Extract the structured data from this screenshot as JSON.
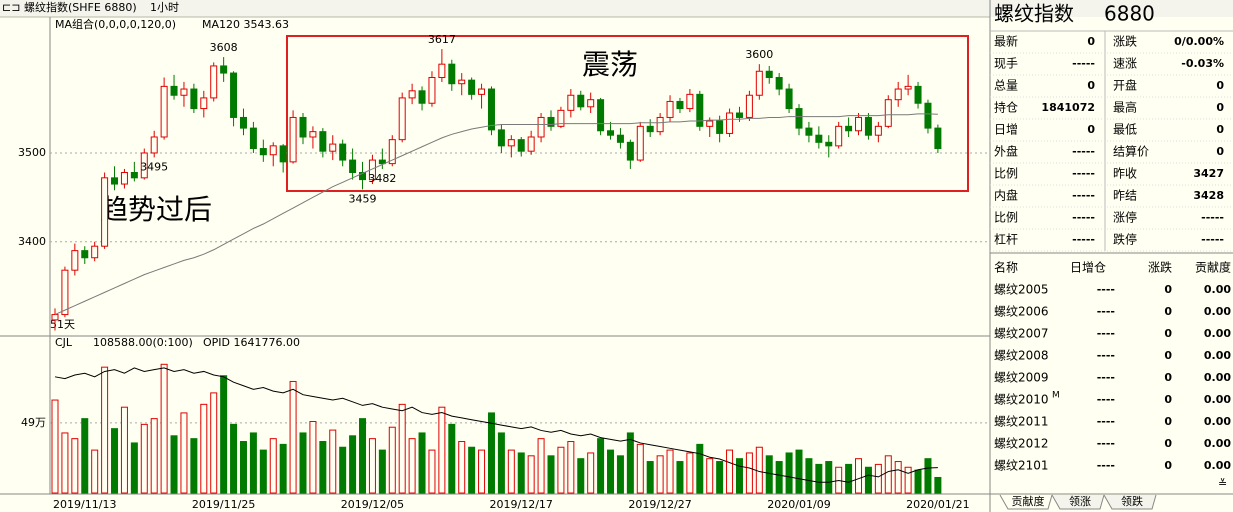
{
  "toolbar": {
    "symbol": "螺纹指数(SHFE 6880)",
    "period": "1小时"
  },
  "chart_data": [
    {
      "type": "candlestick",
      "title": "MA组合(0,0,0,0,120,0)",
      "ma_label": "MA120 3543.63",
      "categories": [
        null,
        null,
        null,
        "2019/11/13",
        null,
        null,
        null,
        null,
        null,
        null,
        null,
        null,
        null,
        null,
        null,
        null,
        null,
        "2019/11/25",
        null,
        null,
        null,
        null,
        null,
        null,
        null,
        null,
        null,
        null,
        null,
        null,
        null,
        null,
        "2019/12/05",
        null,
        null,
        null,
        null,
        null,
        null,
        null,
        null,
        null,
        null,
        null,
        null,
        null,
        null,
        "2019/12/17",
        null,
        null,
        null,
        null,
        null,
        null,
        null,
        null,
        null,
        null,
        null,
        null,
        null,
        "2019/12/27",
        null,
        null,
        null,
        null,
        null,
        null,
        null,
        null,
        null,
        null,
        null,
        null,
        null,
        "2020/01/09",
        null,
        null,
        null,
        null,
        null,
        null,
        null,
        null,
        null,
        null,
        null,
        null,
        null,
        "2020/01/21"
      ],
      "open": [
        3312,
        3318,
        3368,
        3390,
        3382,
        3395,
        3472,
        3465,
        3478,
        3472,
        3500,
        3518,
        3575,
        3565,
        3572,
        3550,
        3562,
        3598,
        3590,
        3540,
        3528,
        3505,
        3498,
        3508,
        3490,
        3540,
        3518,
        3524,
        3502,
        3510,
        3492,
        3478,
        3470,
        3492,
        3488,
        3515,
        3562,
        3570,
        3556,
        3585,
        3600,
        3578,
        3582,
        3566,
        3572,
        3526,
        3508,
        3515,
        3502,
        3518,
        3540,
        3530,
        3548,
        3565,
        3552,
        3560,
        3525,
        3520,
        3512,
        3492,
        3530,
        3524,
        3540,
        3558,
        3550,
        3566,
        3530,
        3536,
        3522,
        3545,
        3540,
        3565,
        3592,
        3585,
        3572,
        3550,
        3528,
        3520,
        3512,
        3508,
        3530,
        3525,
        3540,
        3520,
        3530,
        3560,
        3572,
        3575,
        3556,
        3528
      ],
      "high": [
        3325,
        3372,
        3398,
        3395,
        3400,
        3478,
        3485,
        3482,
        3490,
        3505,
        3525,
        3585,
        3588,
        3580,
        3578,
        3570,
        3602,
        3608,
        3592,
        3550,
        3535,
        3515,
        3512,
        3510,
        3548,
        3545,
        3530,
        3528,
        3520,
        3515,
        3505,
        3490,
        3498,
        3505,
        3520,
        3568,
        3578,
        3575,
        3592,
        3617,
        3605,
        3590,
        3585,
        3578,
        3575,
        3532,
        3520,
        3518,
        3525,
        3545,
        3548,
        3552,
        3572,
        3570,
        3568,
        3562,
        3535,
        3528,
        3515,
        3535,
        3538,
        3545,
        3565,
        3562,
        3572,
        3570,
        3540,
        3542,
        3550,
        3552,
        3570,
        3600,
        3598,
        3590,
        3578,
        3555,
        3535,
        3530,
        3520,
        3535,
        3540,
        3545,
        3545,
        3535,
        3565,
        3580,
        3588,
        3580,
        3560,
        3532
      ],
      "low": [
        3300,
        3315,
        3362,
        3375,
        3378,
        3392,
        3458,
        3460,
        3468,
        3470,
        3495,
        3515,
        3560,
        3552,
        3545,
        3540,
        3558,
        3580,
        3530,
        3520,
        3500,
        3490,
        3485,
        3478,
        3488,
        3510,
        3505,
        3495,
        3492,
        3485,
        3470,
        3459,
        3465,
        3482,
        3485,
        3512,
        3555,
        3548,
        3552,
        3580,
        3570,
        3565,
        3560,
        3550,
        3520,
        3500,
        3495,
        3496,
        3498,
        3512,
        3525,
        3528,
        3540,
        3548,
        3545,
        3520,
        3515,
        3505,
        3482,
        3490,
        3518,
        3520,
        3535,
        3545,
        3546,
        3525,
        3518,
        3512,
        3518,
        3535,
        3536,
        3560,
        3578,
        3565,
        3545,
        3520,
        3512,
        3505,
        3495,
        3505,
        3518,
        3520,
        3515,
        3512,
        3528,
        3552,
        3565,
        3550,
        3522,
        3500
      ],
      "close": [
        3318,
        3368,
        3390,
        3382,
        3395,
        3472,
        3465,
        3478,
        3472,
        3500,
        3518,
        3575,
        3565,
        3572,
        3550,
        3562,
        3598,
        3590,
        3540,
        3528,
        3505,
        3498,
        3508,
        3490,
        3540,
        3518,
        3524,
        3502,
        3510,
        3492,
        3478,
        3470,
        3492,
        3488,
        3515,
        3562,
        3570,
        3556,
        3585,
        3600,
        3578,
        3582,
        3566,
        3572,
        3526,
        3508,
        3515,
        3502,
        3518,
        3540,
        3530,
        3548,
        3565,
        3552,
        3560,
        3525,
        3520,
        3512,
        3492,
        3530,
        3524,
        3540,
        3558,
        3550,
        3566,
        3530,
        3536,
        3522,
        3545,
        3540,
        3565,
        3592,
        3585,
        3572,
        3550,
        3528,
        3520,
        3512,
        3508,
        3530,
        3525,
        3540,
        3520,
        3530,
        3560,
        3572,
        3575,
        3556,
        3528,
        3505
      ],
      "ma": {
        "color": "#7a7a7a",
        "values": [
          3318,
          3323,
          3328,
          3333,
          3338,
          3343,
          3348,
          3353,
          3358,
          3363,
          3367,
          3371,
          3375,
          3379,
          3382,
          3386,
          3391,
          3397,
          3403,
          3409,
          3415,
          3420,
          3426,
          3432,
          3438,
          3444,
          3450,
          3456,
          3462,
          3467,
          3472,
          3477,
          3482,
          3487,
          3492,
          3497,
          3502,
          3507,
          3512,
          3517,
          3521,
          3524,
          3527,
          3529,
          3531,
          3532,
          3532,
          3532,
          3532,
          3532,
          3532,
          3533,
          3533,
          3533,
          3533,
          3533,
          3533,
          3533,
          3533,
          3534,
          3534,
          3534,
          3535,
          3535,
          3536,
          3536,
          3537,
          3537,
          3538,
          3538,
          3539,
          3539,
          3540,
          3540,
          3541,
          3541,
          3541,
          3541,
          3541,
          3541,
          3542,
          3542,
          3542,
          3542,
          3543,
          3543,
          3543,
          3544,
          3544,
          3543.63
        ]
      },
      "up_color": "#e00000",
      "down_color": "#007a00",
      "ylim": [
        3295,
        3652
      ],
      "yticks": [
        3400,
        3500
      ],
      "grid": true,
      "high_labels": [
        3608,
        3617,
        3600
      ],
      "low_labels": [
        3459,
        3482,
        3495
      ],
      "annotations": [
        "趋势过后",
        "震荡"
      ],
      "period_label": "51天"
    },
    {
      "type": "bar",
      "title": "CJL",
      "value_text": "108588.00(0:100)",
      "values": [
        650000,
        420000,
        380000,
        520000,
        300000,
        880000,
        450000,
        600000,
        350000,
        480000,
        520000,
        900000,
        400000,
        560000,
        380000,
        620000,
        700000,
        820000,
        480000,
        360000,
        420000,
        300000,
        380000,
        340000,
        780000,
        420000,
        500000,
        360000,
        440000,
        320000,
        400000,
        520000,
        380000,
        300000,
        460000,
        620000,
        380000,
        420000,
        300000,
        600000,
        480000,
        360000,
        320000,
        300000,
        560000,
        420000,
        300000,
        280000,
        260000,
        380000,
        260000,
        320000,
        360000,
        240000,
        280000,
        380000,
        300000,
        260000,
        420000,
        340000,
        220000,
        260000,
        300000,
        220000,
        280000,
        340000,
        240000,
        220000,
        300000,
        240000,
        280000,
        320000,
        260000,
        220000,
        280000,
        300000,
        240000,
        200000,
        220000,
        180000,
        200000,
        240000,
        180000,
        200000,
        260000,
        220000,
        180000,
        160000,
        240000,
        108588
      ],
      "ylim": [
        0,
        1000000
      ],
      "yticks": [
        {
          "value": 490000,
          "label": "49万"
        }
      ],
      "series": [
        {
          "name": "OPID 1641776.00",
          "color": "#000000",
          "axis": "y2",
          "values": [
            2150000,
            2140000,
            2160000,
            2170000,
            2150000,
            2180000,
            2190000,
            2170000,
            2200000,
            2180000,
            2190000,
            2200000,
            2180000,
            2190000,
            2170000,
            2180000,
            2160000,
            2150000,
            2120000,
            2100000,
            2080000,
            2090000,
            2070000,
            2060000,
            2080000,
            2050000,
            2040000,
            2030000,
            2020000,
            2030000,
            2010000,
            1990000,
            2000000,
            1980000,
            1970000,
            1960000,
            1980000,
            1950000,
            1940000,
            1950000,
            1930000,
            1920000,
            1910000,
            1900000,
            1890000,
            1880000,
            1870000,
            1860000,
            1870000,
            1850000,
            1840000,
            1850000,
            1830000,
            1820000,
            1830000,
            1810000,
            1800000,
            1790000,
            1800000,
            1780000,
            1770000,
            1760000,
            1750000,
            1740000,
            1730000,
            1720000,
            1700000,
            1690000,
            1670000,
            1650000,
            1640000,
            1620000,
            1610000,
            1600000,
            1590000,
            1580000,
            1570000,
            1560000,
            1560000,
            1570000,
            1560000,
            1580000,
            1600000,
            1590000,
            1620000,
            1630000,
            1610000,
            1630000,
            1640000,
            1641776
          ]
        }
      ],
      "y2lim": [
        1500000,
        2300000
      ]
    }
  ],
  "quote": {
    "title": "螺纹指数",
    "code": "6880",
    "rows": [
      [
        "最新",
        0,
        "涨跌",
        "0/0.00%"
      ],
      [
        "现手",
        "-----",
        "速涨",
        "-0.03%"
      ],
      [
        "总量",
        0,
        "开盘",
        0
      ],
      [
        "持仓",
        1841072,
        "最高",
        0
      ],
      [
        "日增",
        0,
        "最低",
        0
      ],
      [
        "外盘",
        "-----",
        "结算价",
        0
      ],
      [
        "比例",
        "-----",
        "昨收",
        3427
      ],
      [
        "内盘",
        "-----",
        "昨结",
        3428
      ],
      [
        "比例",
        "-----",
        "涨停",
        "-----"
      ],
      [
        "杠杆",
        "-----",
        "跌停",
        "-----"
      ]
    ]
  },
  "components": {
    "headers": [
      "名称",
      "日增仓",
      "涨跌",
      "贡献度"
    ],
    "rows": [
      [
        "螺纹2005",
        "----",
        0,
        "0.00"
      ],
      [
        "螺纹2006",
        "----",
        0,
        "0.00"
      ],
      [
        "螺纹2007",
        "----",
        0,
        "0.00"
      ],
      [
        "螺纹2008",
        "----",
        0,
        "0.00"
      ],
      [
        "螺纹2009",
        "----",
        0,
        "0.00"
      ],
      [
        "螺纹2010",
        "----",
        0,
        "0.00",
        "M"
      ],
      [
        "螺纹2011",
        "----",
        0,
        "0.00"
      ],
      [
        "螺纹2012",
        "----",
        0,
        "0.00"
      ],
      [
        "螺纹2101",
        "----",
        0,
        "0.00"
      ]
    ],
    "tabs": [
      "贡献度",
      "领涨",
      "领跌"
    ]
  }
}
